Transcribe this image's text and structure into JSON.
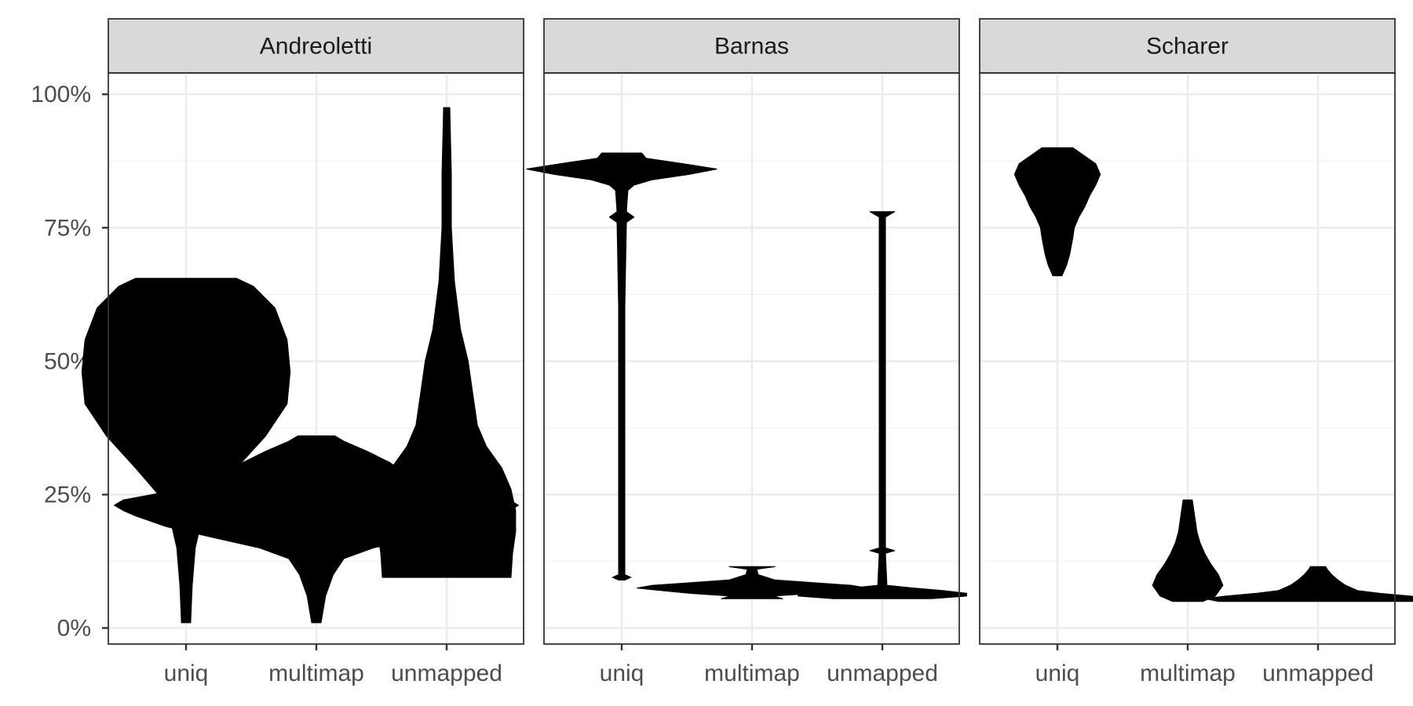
{
  "chart_data": {
    "type": "violin",
    "title": "",
    "xlabel": "",
    "ylabel": "",
    "ylim": [
      -0.03,
      1.04
    ],
    "y_ticks": [
      0,
      0.25,
      0.5,
      0.75,
      1.0
    ],
    "y_tick_labels": [
      "0%",
      "25%",
      "50%",
      "75%",
      "100%"
    ],
    "y_minor_ticks": [
      0.125,
      0.375,
      0.625,
      0.875
    ],
    "categories": [
      "uniq",
      "multimap",
      "unmapped"
    ],
    "grid": true,
    "legend": "none",
    "fill_color": "#000000",
    "strip_color": "#d9d9d9",
    "facets": [
      {
        "name": "Andreoletti",
        "violins": [
          {
            "category": "uniq",
            "ymin": 0.01,
            "ymax": 0.655,
            "profile": [
              [
                0.01,
                0.003
              ],
              [
                0.08,
                0.004
              ],
              [
                0.15,
                0.006
              ],
              [
                0.2,
                0.01
              ],
              [
                0.25,
                0.018
              ],
              [
                0.3,
                0.033
              ],
              [
                0.36,
                0.052
              ],
              [
                0.42,
                0.066
              ],
              [
                0.48,
                0.068
              ],
              [
                0.54,
                0.066
              ],
              [
                0.6,
                0.058
              ],
              [
                0.64,
                0.044
              ],
              [
                0.655,
                0.033
              ]
            ]
          },
          {
            "category": "multimap",
            "ymin": 0.01,
            "ymax": 0.36,
            "profile": [
              [
                0.01,
                0.003
              ],
              [
                0.06,
                0.006
              ],
              [
                0.1,
                0.011
              ],
              [
                0.13,
                0.018
              ],
              [
                0.15,
                0.037
              ],
              [
                0.17,
                0.068
              ],
              [
                0.19,
                0.098
              ],
              [
                0.21,
                0.118
              ],
              [
                0.22,
                0.126
              ],
              [
                0.23,
                0.132
              ],
              [
                0.24,
                0.126
              ],
              [
                0.25,
                0.107
              ],
              [
                0.27,
                0.075
              ],
              [
                0.29,
                0.058
              ],
              [
                0.31,
                0.048
              ],
              [
                0.33,
                0.034
              ],
              [
                0.35,
                0.018
              ],
              [
                0.36,
                0.012
              ]
            ]
          },
          {
            "category": "unmapped",
            "ymin": 0.095,
            "ymax": 0.975,
            "profile": [
              [
                0.095,
                0.042
              ],
              [
                0.14,
                0.043
              ],
              [
                0.18,
                0.045
              ],
              [
                0.22,
                0.045
              ],
              [
                0.26,
                0.042
              ],
              [
                0.3,
                0.036
              ],
              [
                0.34,
                0.026
              ],
              [
                0.38,
                0.02
              ],
              [
                0.44,
                0.017
              ],
              [
                0.5,
                0.014
              ],
              [
                0.56,
                0.009
              ],
              [
                0.65,
                0.005
              ],
              [
                0.75,
                0.003
              ],
              [
                0.85,
                0.003
              ],
              [
                0.975,
                0.002
              ]
            ]
          }
        ]
      },
      {
        "name": "Barnas",
        "violins": [
          {
            "category": "uniq",
            "ymin": 0.09,
            "ymax": 0.89,
            "profile": [
              [
                0.09,
                0.002
              ],
              [
                0.095,
                0.006
              ],
              [
                0.1,
                0.002
              ],
              [
                0.2,
                0.002
              ],
              [
                0.4,
                0.002
              ],
              [
                0.6,
                0.002
              ],
              [
                0.76,
                0.003
              ],
              [
                0.77,
                0.008
              ],
              [
                0.78,
                0.003
              ],
              [
                0.82,
                0.004
              ],
              [
                0.83,
                0.008
              ],
              [
                0.84,
                0.02
              ],
              [
                0.85,
                0.044
              ],
              [
                0.86,
                0.062
              ],
              [
                0.87,
                0.04
              ],
              [
                0.88,
                0.016
              ],
              [
                0.89,
                0.013
              ]
            ]
          },
          {
            "category": "multimap",
            "ymin": 0.055,
            "ymax": 0.115,
            "profile": [
              [
                0.055,
                0.02
              ],
              [
                0.06,
                0.014
              ],
              [
                0.065,
                0.04
              ],
              [
                0.07,
                0.058
              ],
              [
                0.075,
                0.075
              ],
              [
                0.08,
                0.065
              ],
              [
                0.085,
                0.04
              ],
              [
                0.09,
                0.015
              ],
              [
                0.1,
                0.004
              ],
              [
                0.11,
                0.003
              ],
              [
                0.115,
                0.015
              ]
            ]
          },
          {
            "category": "unmapped",
            "ymin": 0.055,
            "ymax": 0.78,
            "profile": [
              [
                0.055,
                0.032
              ],
              [
                0.06,
                0.055
              ],
              [
                0.065,
                0.055
              ],
              [
                0.07,
                0.04
              ],
              [
                0.075,
                0.02
              ],
              [
                0.08,
                0.003
              ],
              [
                0.14,
                0.002
              ],
              [
                0.145,
                0.008
              ],
              [
                0.15,
                0.002
              ],
              [
                0.4,
                0.002
              ],
              [
                0.7,
                0.002
              ],
              [
                0.77,
                0.002
              ],
              [
                0.78,
                0.008
              ]
            ]
          }
        ]
      },
      {
        "name": "Scharer",
        "violins": [
          {
            "category": "uniq",
            "ymin": 0.66,
            "ymax": 0.9,
            "profile": [
              [
                0.66,
                0.003
              ],
              [
                0.68,
                0.006
              ],
              [
                0.7,
                0.008
              ],
              [
                0.73,
                0.01
              ],
              [
                0.75,
                0.011
              ],
              [
                0.77,
                0.014
              ],
              [
                0.79,
                0.018
              ],
              [
                0.81,
                0.021
              ],
              [
                0.83,
                0.025
              ],
              [
                0.85,
                0.028
              ],
              [
                0.87,
                0.025
              ],
              [
                0.89,
                0.015
              ],
              [
                0.9,
                0.01
              ]
            ]
          },
          {
            "category": "multimap",
            "ymin": 0.05,
            "ymax": 0.24,
            "profile": [
              [
                0.05,
                0.01
              ],
              [
                0.06,
                0.018
              ],
              [
                0.08,
                0.023
              ],
              [
                0.1,
                0.02
              ],
              [
                0.12,
                0.015
              ],
              [
                0.14,
                0.011
              ],
              [
                0.16,
                0.008
              ],
              [
                0.18,
                0.006
              ],
              [
                0.2,
                0.005
              ],
              [
                0.22,
                0.004
              ],
              [
                0.24,
                0.003
              ]
            ]
          },
          {
            "category": "unmapped",
            "ymin": 0.05,
            "ymax": 0.115,
            "profile": [
              [
                0.05,
                0.065
              ],
              [
                0.055,
                0.074
              ],
              [
                0.06,
                0.06
              ],
              [
                0.065,
                0.04
              ],
              [
                0.07,
                0.026
              ],
              [
                0.08,
                0.018
              ],
              [
                0.09,
                0.013
              ],
              [
                0.1,
                0.009
              ],
              [
                0.11,
                0.006
              ],
              [
                0.115,
                0.005
              ]
            ]
          }
        ]
      }
    ]
  }
}
